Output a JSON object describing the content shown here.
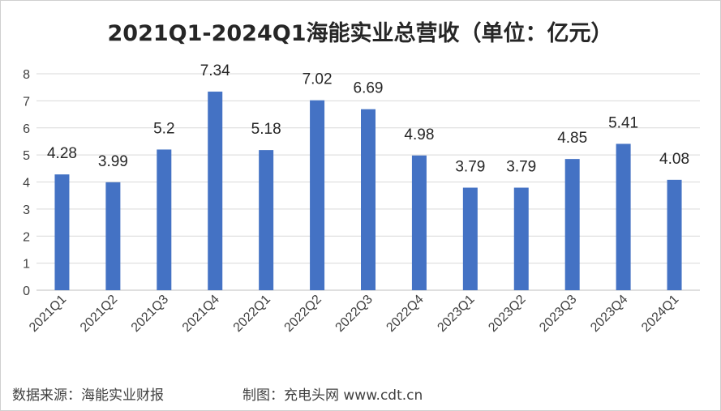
{
  "chart_data": {
    "type": "bar",
    "title": "2021Q1-2024Q1海能实业总营收（单位：亿元）",
    "categories": [
      "2021Q1",
      "2021Q2",
      "2021Q3",
      "2021Q4",
      "2022Q1",
      "2022Q2",
      "2022Q3",
      "2022Q4",
      "2023Q1",
      "2023Q2",
      "2023Q3",
      "2023Q4",
      "2024Q1"
    ],
    "values": [
      4.28,
      3.99,
      5.2,
      7.34,
      5.18,
      7.02,
      6.69,
      4.98,
      3.79,
      3.79,
      4.85,
      5.41,
      4.08
    ],
    "data_labels": [
      "4.28",
      "3.99",
      "5.2",
      "7.34",
      "5.18",
      "7.02",
      "6.69",
      "4.98",
      "3.79",
      "3.79",
      "4.85",
      "5.41",
      "4.08"
    ],
    "ylim": [
      0,
      8
    ],
    "yticks": [
      "0",
      "1",
      "2",
      "3",
      "4",
      "5",
      "6",
      "7",
      "8"
    ],
    "grid": true,
    "bar_color": "#4472c4",
    "grid_color": "#d9d9d9"
  },
  "footer": {
    "source": "数据来源：海能实业财报",
    "credit": "制图：充电头网 www.cdt.cn"
  }
}
